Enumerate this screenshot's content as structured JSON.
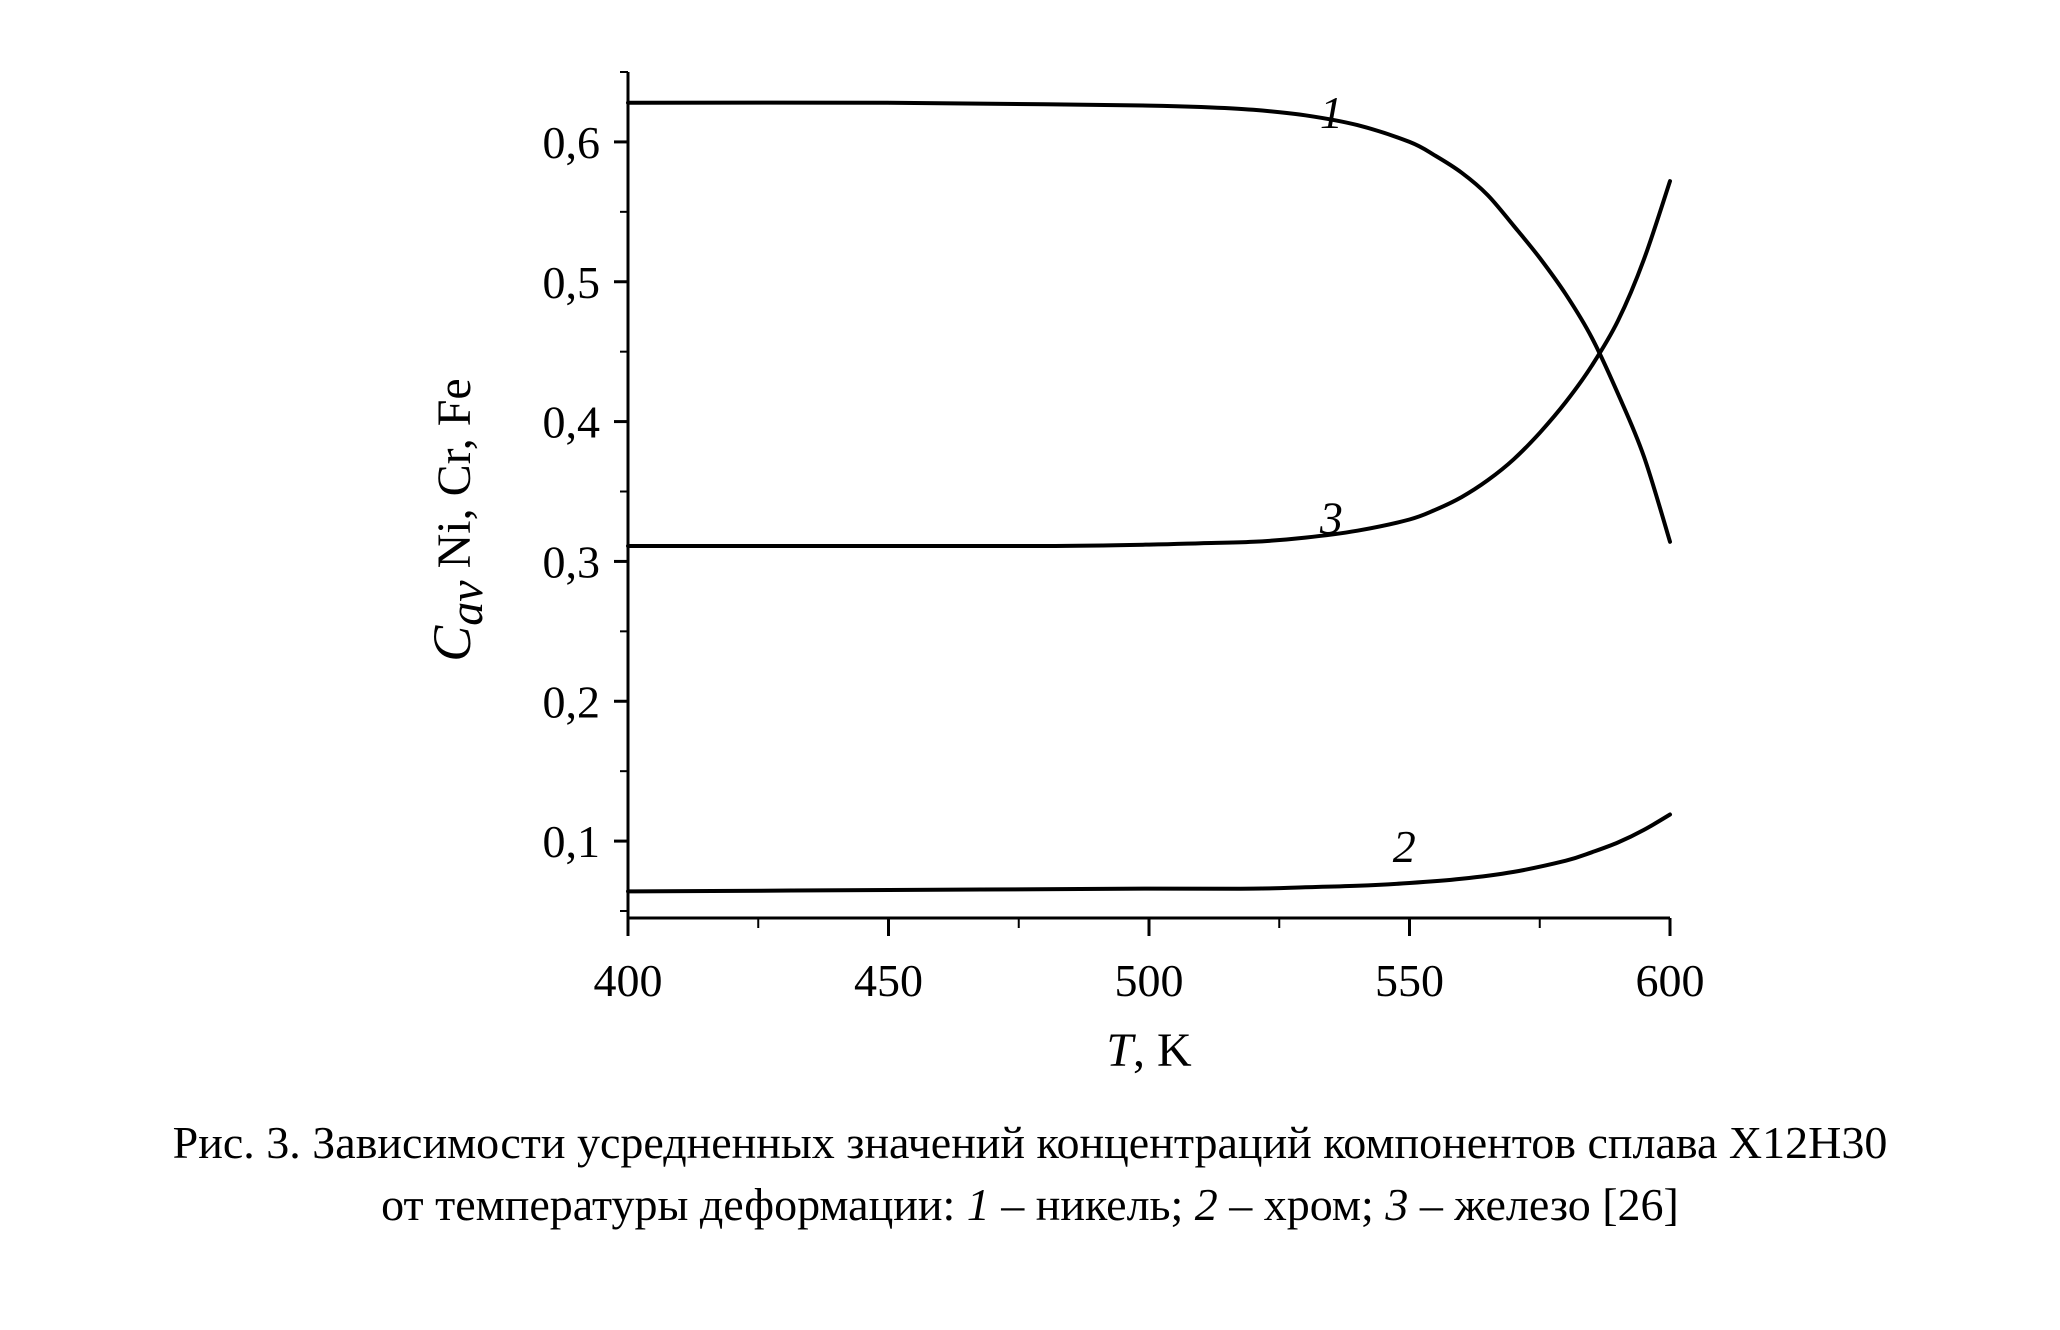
{
  "chart_data": {
    "type": "line",
    "xlabel": {
      "var": "T",
      "unit": ", K"
    },
    "ylabel": {
      "var": "C",
      "sub": "av",
      "rest": " Ni, Cr, Fe"
    },
    "xlim": [
      400,
      600
    ],
    "ylim": [
      0.045,
      0.65
    ],
    "x_ticks": [
      400,
      450,
      500,
      550,
      600
    ],
    "x_tick_labels": [
      "400",
      "450",
      "500",
      "550",
      "600"
    ],
    "y_ticks": [
      0.1,
      0.2,
      0.3,
      0.4,
      0.5,
      0.6
    ],
    "y_tick_labels": [
      "0,1",
      "0,2",
      "0,3",
      "0,4",
      "0,5",
      "0,6"
    ],
    "grid": false,
    "legend": "none",
    "series": [
      {
        "name": "1",
        "x": [
          400,
          450,
          480,
          500,
          510,
          520,
          530,
          540,
          550,
          555,
          560,
          565,
          570,
          575,
          580,
          585,
          590,
          595,
          600
        ],
        "y": [
          0.628,
          0.628,
          0.627,
          0.626,
          0.625,
          0.623,
          0.619,
          0.612,
          0.6,
          0.59,
          0.578,
          0.562,
          0.54,
          0.517,
          0.491,
          0.46,
          0.42,
          0.375,
          0.314
        ],
        "label_at": [
          535,
          0.61
        ]
      },
      {
        "name": "2",
        "x": [
          400,
          450,
          500,
          520,
          530,
          540,
          550,
          560,
          570,
          580,
          585,
          590,
          595,
          600
        ],
        "y": [
          0.064,
          0.065,
          0.066,
          0.066,
          0.067,
          0.068,
          0.07,
          0.073,
          0.078,
          0.086,
          0.092,
          0.099,
          0.108,
          0.119
        ],
        "label_at": [
          549,
          0.085
        ]
      },
      {
        "name": "3",
        "x": [
          400,
          450,
          480,
          500,
          510,
          520,
          530,
          540,
          550,
          555,
          560,
          565,
          570,
          575,
          580,
          585,
          590,
          595,
          600
        ],
        "y": [
          0.311,
          0.311,
          0.311,
          0.312,
          0.313,
          0.314,
          0.317,
          0.322,
          0.33,
          0.337,
          0.346,
          0.358,
          0.373,
          0.392,
          0.414,
          0.44,
          0.472,
          0.516,
          0.572
        ],
        "label_at": [
          535,
          0.32
        ]
      }
    ]
  },
  "caption": {
    "line1": "Рис. 3. Зависимости усредненных значений концентраций компонентов сплава Х12Н30",
    "line2_pre": "от температуры деформации: ",
    "n1": "1",
    "t1": " – никель; ",
    "n2": "2",
    "t2": " – хром; ",
    "n3": "3",
    "t3": " – железо [26]"
  }
}
